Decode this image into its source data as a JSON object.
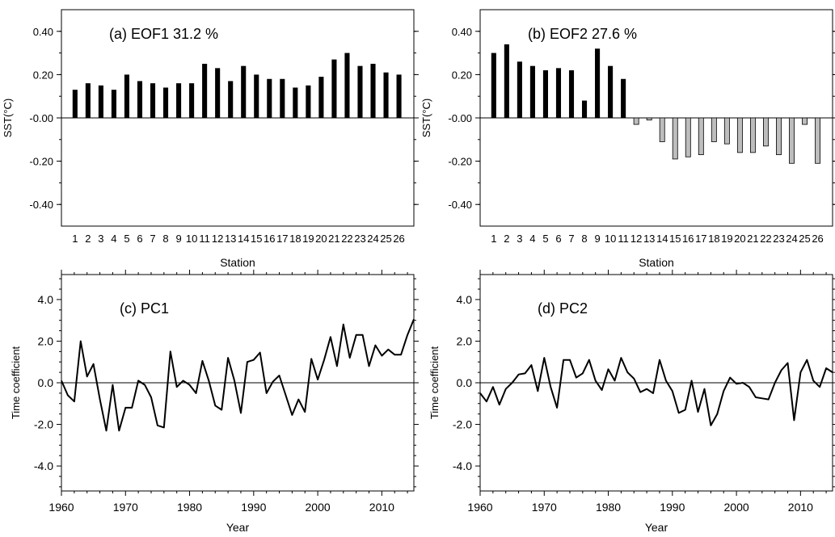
{
  "colors": {
    "positive_bar": "#000000",
    "negative_bar": "#bdbdbd",
    "line": "#000000"
  },
  "chart_data": [
    {
      "id": "a",
      "type": "bar",
      "title": "(a) EOF1 31.2 %",
      "xlabel": "Station",
      "ylabel": "SST(°C)",
      "ylim": [
        -0.5,
        0.5
      ],
      "yticks": [
        0.4,
        0.2,
        0.0,
        -0.2,
        -0.4
      ],
      "ytick_labels": [
        "0.40",
        "0.20",
        "-0.00",
        "-0.20",
        "-0.40"
      ],
      "categories": [
        "1",
        "2",
        "3",
        "4",
        "5",
        "6",
        "7",
        "8",
        "9",
        "10",
        "11",
        "12",
        "13",
        "14",
        "15",
        "16",
        "17",
        "18",
        "19",
        "20",
        "21",
        "22",
        "23",
        "24",
        "25",
        "26"
      ],
      "values": [
        0.13,
        0.16,
        0.15,
        0.13,
        0.2,
        0.17,
        0.16,
        0.14,
        0.16,
        0.16,
        0.25,
        0.23,
        0.17,
        0.24,
        0.2,
        0.18,
        0.18,
        0.14,
        0.15,
        0.19,
        0.27,
        0.3,
        0.24,
        0.25,
        0.21,
        0.2
      ]
    },
    {
      "id": "b",
      "type": "bar",
      "title": "(b) EOF2 27.6 %",
      "xlabel": "Station",
      "ylabel": "SST(°C)",
      "ylim": [
        -0.5,
        0.5
      ],
      "yticks": [
        0.4,
        0.2,
        0.0,
        -0.2,
        -0.4
      ],
      "ytick_labels": [
        "0.40",
        "0.20",
        "-0.00",
        "-0.20",
        "-0.40"
      ],
      "categories": [
        "1",
        "2",
        "3",
        "4",
        "5",
        "6",
        "7",
        "8",
        "9",
        "10",
        "11",
        "12",
        "13",
        "14",
        "15",
        "16",
        "17",
        "18",
        "19",
        "20",
        "21",
        "22",
        "23",
        "24",
        "25",
        "26"
      ],
      "values": [
        0.3,
        0.34,
        0.26,
        0.24,
        0.22,
        0.23,
        0.22,
        0.08,
        0.32,
        0.24,
        0.18,
        -0.03,
        -0.01,
        -0.11,
        -0.19,
        -0.18,
        -0.17,
        -0.11,
        -0.12,
        -0.16,
        -0.16,
        -0.13,
        -0.17,
        -0.21,
        -0.03,
        -0.21
      ]
    },
    {
      "id": "c",
      "type": "line",
      "title": "(c) PC1",
      "xlabel": "Year",
      "ylabel": "Time coefficient",
      "xlim": [
        1960,
        2015
      ],
      "ylim": [
        -5.2,
        5.2
      ],
      "xticks": [
        1960,
        1970,
        1980,
        1990,
        2000,
        2010
      ],
      "yticks": [
        4.0,
        2.0,
        0.0,
        -2.0,
        -4.0
      ],
      "ytick_labels": [
        "4.0",
        "2.0",
        "0.0",
        "-2.0",
        "-4.0"
      ],
      "x": [
        1960,
        1961,
        1962,
        1963,
        1964,
        1965,
        1966,
        1967,
        1968,
        1969,
        1970,
        1971,
        1972,
        1973,
        1974,
        1975,
        1976,
        1977,
        1978,
        1979,
        1980,
        1981,
        1982,
        1983,
        1984,
        1985,
        1986,
        1987,
        1988,
        1989,
        1990,
        1991,
        1992,
        1993,
        1994,
        1995,
        1996,
        1997,
        1998,
        1999,
        2000,
        2001,
        2002,
        2003,
        2004,
        2005,
        2006,
        2007,
        2008,
        2009,
        2010,
        2011,
        2012,
        2013,
        2014,
        2015
      ],
      "values": [
        0.1,
        -0.6,
        -0.9,
        2.0,
        0.3,
        0.9,
        -0.8,
        -2.3,
        -0.1,
        -2.3,
        -1.2,
        -1.2,
        0.1,
        -0.1,
        -0.7,
        -2.05,
        -2.15,
        1.5,
        -0.2,
        0.1,
        -0.1,
        -0.5,
        1.05,
        0.1,
        -1.1,
        -1.3,
        1.2,
        0.1,
        -1.45,
        1.0,
        1.1,
        1.45,
        -0.5,
        0.05,
        0.35,
        -0.6,
        -1.55,
        -0.8,
        -1.4,
        1.15,
        0.15,
        1.1,
        2.2,
        0.8,
        2.8,
        1.2,
        2.3,
        2.3,
        0.8,
        1.8,
        1.3,
        1.6,
        1.35,
        1.35,
        2.3,
        3.05
      ]
    },
    {
      "id": "d",
      "type": "line",
      "title": "(d) PC2",
      "xlabel": "Year",
      "ylabel": "Time coefficient",
      "xlim": [
        1960,
        2015
      ],
      "ylim": [
        -5.2,
        5.2
      ],
      "xticks": [
        1960,
        1970,
        1980,
        1990,
        2000,
        2010
      ],
      "yticks": [
        4.0,
        2.0,
        0.0,
        -2.0,
        -4.0
      ],
      "ytick_labels": [
        "4.0",
        "2.0",
        "0.0",
        "-2.0",
        "-4.0"
      ],
      "x": [
        1960,
        1961,
        1962,
        1963,
        1964,
        1965,
        1966,
        1967,
        1968,
        1969,
        1970,
        1971,
        1972,
        1973,
        1974,
        1975,
        1976,
        1977,
        1978,
        1979,
        1980,
        1981,
        1982,
        1983,
        1984,
        1985,
        1986,
        1987,
        1988,
        1989,
        1990,
        1991,
        1992,
        1993,
        1994,
        1995,
        1996,
        1997,
        1998,
        1999,
        2000,
        2001,
        2002,
        2003,
        2004,
        2005,
        2006,
        2007,
        2008,
        2009,
        2010,
        2011,
        2012,
        2013,
        2014,
        2015
      ],
      "values": [
        -0.5,
        -0.9,
        -0.2,
        -1.05,
        -0.3,
        0.0,
        0.4,
        0.45,
        0.85,
        -0.4,
        1.2,
        -0.2,
        -1.2,
        1.1,
        1.1,
        0.25,
        0.45,
        1.1,
        0.1,
        -0.35,
        0.65,
        0.1,
        1.2,
        0.5,
        0.2,
        -0.45,
        -0.3,
        -0.5,
        1.1,
        0.1,
        -0.4,
        -1.45,
        -1.3,
        0.1,
        -1.4,
        -0.3,
        -2.05,
        -1.5,
        -0.4,
        0.25,
        -0.05,
        0.0,
        -0.2,
        -0.7,
        -0.75,
        -0.8,
        0.0,
        0.6,
        0.95,
        -1.8,
        0.5,
        1.1,
        0.1,
        -0.2,
        0.7,
        0.5
      ]
    }
  ]
}
